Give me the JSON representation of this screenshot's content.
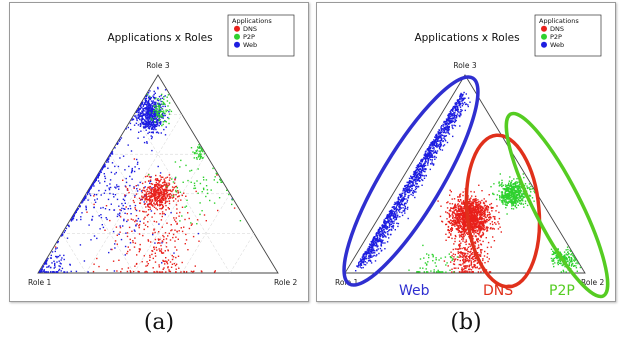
{
  "chart_data": [
    {
      "type": "scatter",
      "subtype": "ternary",
      "title": "Applications x Roles",
      "corner_labels": {
        "top": "Role 3",
        "left": "Role 1",
        "right": "Role 2"
      },
      "legend": {
        "title": "Applications",
        "placement": "top-right",
        "entries": [
          {
            "name": "DNS",
            "color": "#e8201b"
          },
          {
            "name": "P2P",
            "color": "#2fd12f"
          },
          {
            "name": "Web",
            "color": "#1d1de0"
          }
        ]
      },
      "grid": true,
      "caption": "(a)",
      "series": [
        {
          "name": "Web",
          "color": "#1d1de0",
          "clusters": [
            {
              "role1": 0.13,
              "role2": 0.07,
              "role3": 0.8,
              "spread": 0.04,
              "count": 550
            },
            {
              "role1": 0.55,
              "role2": 0.03,
              "role3": 0.42,
              "spread": 0.2,
              "count": 380
            },
            {
              "role1": 0.94,
              "role2": 0.03,
              "role3": 0.03,
              "spread": 0.04,
              "count": 90
            }
          ]
        },
        {
          "name": "DNS",
          "color": "#e8201b",
          "clusters": [
            {
              "role1": 0.3,
              "role2": 0.3,
              "role3": 0.4,
              "spread": 0.05,
              "count": 420
            },
            {
              "role1": 0.42,
              "role2": 0.38,
              "role3": 0.2,
              "spread": 0.14,
              "count": 240
            },
            {
              "role1": 0.45,
              "role2": 0.5,
              "role3": 0.05,
              "spread": 0.05,
              "count": 50
            }
          ]
        },
        {
          "name": "P2P",
          "color": "#2fd12f",
          "clusters": [
            {
              "role1": 0.08,
              "role2": 0.1,
              "role3": 0.82,
              "spread": 0.03,
              "count": 90
            },
            {
              "role1": 0.03,
              "role2": 0.37,
              "role3": 0.6,
              "spread": 0.02,
              "count": 40
            },
            {
              "role1": 0.12,
              "role2": 0.45,
              "role3": 0.43,
              "spread": 0.1,
              "count": 70
            }
          ]
        }
      ]
    },
    {
      "type": "scatter",
      "subtype": "ternary",
      "title": "Applications x Roles",
      "corner_labels": {
        "top": "Role 3",
        "left": "Role 1",
        "right": "Role 2"
      },
      "legend": {
        "title": "Applications",
        "placement": "top-right",
        "entries": [
          {
            "name": "DNS",
            "color": "#e8201b"
          },
          {
            "name": "P2P",
            "color": "#2fd12f"
          },
          {
            "name": "Web",
            "color": "#1d1de0"
          }
        ]
      },
      "grid": false,
      "caption": "(b)",
      "cluster_labels": [
        {
          "text": "Web",
          "color": "#2f2fd0"
        },
        {
          "text": "DNS",
          "color": "#e0301b"
        },
        {
          "text": "P2P",
          "color": "#55cc22"
        }
      ],
      "series": [
        {
          "name": "Web",
          "color": "#1d1de0",
          "band": {
            "from": {
              "role1": 0.06,
              "role2": 0.03,
              "role3": 0.91
            },
            "to": {
              "role1": 0.94,
              "role2": 0.03,
              "role3": 0.03
            },
            "spread": 0.03,
            "count": 1400
          }
        },
        {
          "name": "DNS",
          "color": "#e8201b",
          "clusters": [
            {
              "role1": 0.34,
              "role2": 0.38,
              "role3": 0.28,
              "spread": 0.06,
              "count": 1300
            },
            {
              "role1": 0.45,
              "role2": 0.48,
              "role3": 0.07,
              "spread": 0.05,
              "count": 250
            }
          ]
        },
        {
          "name": "P2P",
          "color": "#2fd12f",
          "clusters": [
            {
              "role1": 0.1,
              "role2": 0.5,
              "role3": 0.4,
              "spread": 0.04,
              "count": 500
            },
            {
              "role1": 0.05,
              "role2": 0.88,
              "role3": 0.07,
              "spread": 0.03,
              "count": 180
            },
            {
              "role1": 0.6,
              "role2": 0.35,
              "role3": 0.05,
              "spread": 0.06,
              "count": 60
            }
          ]
        }
      ]
    }
  ]
}
